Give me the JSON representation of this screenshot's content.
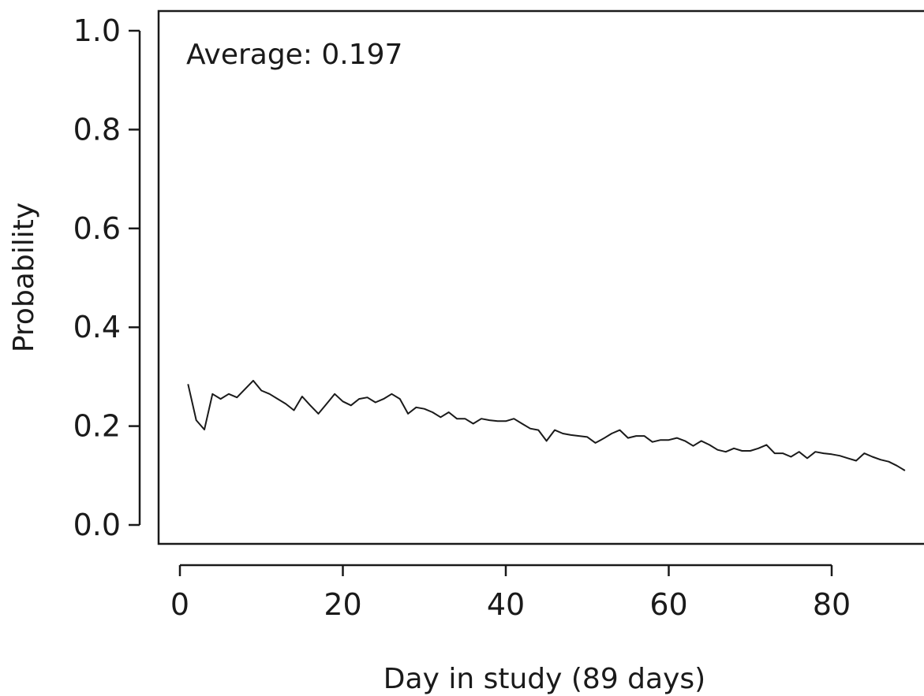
{
  "chart_data": {
    "type": "line",
    "annotation": "Average: 0.197",
    "xlabel": "Day in study (89 days)",
    "ylabel": "Probability",
    "xlim": [
      1,
      89
    ],
    "ylim": [
      0,
      1
    ],
    "x_ticks": [
      0,
      20,
      40,
      60,
      80
    ],
    "x_tick_labels": [
      "0",
      "20",
      "40",
      "60",
      "80"
    ],
    "y_ticks": [
      0,
      0.2,
      0.4,
      0.6,
      0.8,
      1.0
    ],
    "y_tick_labels": [
      "0.0",
      "0.2",
      "0.4",
      "0.6",
      "0.8",
      "1.0"
    ],
    "grid": false,
    "series": [
      {
        "x": [
          1,
          2,
          3,
          4,
          5,
          6,
          7,
          8,
          9,
          10,
          11,
          12,
          13,
          14,
          15,
          16,
          17,
          18,
          19,
          20,
          21,
          22,
          23,
          24,
          25,
          26,
          27,
          28,
          29,
          30,
          31,
          32,
          33,
          34,
          35,
          36,
          37,
          38,
          39,
          40,
          41,
          42,
          43,
          44,
          45,
          46,
          47,
          48,
          49,
          50,
          51,
          52,
          53,
          54,
          55,
          56,
          57,
          58,
          59,
          60,
          61,
          62,
          63,
          64,
          65,
          66,
          67,
          68,
          69,
          70,
          71,
          72,
          73,
          74,
          75,
          76,
          77,
          78,
          79,
          80,
          81,
          82,
          83,
          84,
          85,
          86,
          87,
          88,
          89
        ],
        "y": [
          0.285,
          0.212,
          0.193,
          0.265,
          0.255,
          0.265,
          0.258,
          0.275,
          0.292,
          0.272,
          0.265,
          0.255,
          0.245,
          0.232,
          0.26,
          0.242,
          0.225,
          0.245,
          0.265,
          0.25,
          0.242,
          0.255,
          0.258,
          0.248,
          0.255,
          0.265,
          0.255,
          0.225,
          0.238,
          0.235,
          0.228,
          0.218,
          0.228,
          0.215,
          0.215,
          0.205,
          0.215,
          0.212,
          0.21,
          0.21,
          0.215,
          0.205,
          0.195,
          0.192,
          0.17,
          0.192,
          0.185,
          0.182,
          0.18,
          0.178,
          0.166,
          0.175,
          0.185,
          0.192,
          0.176,
          0.18,
          0.18,
          0.168,
          0.172,
          0.172,
          0.176,
          0.17,
          0.16,
          0.17,
          0.162,
          0.152,
          0.148,
          0.155,
          0.15,
          0.15,
          0.155,
          0.162,
          0.145,
          0.145,
          0.138,
          0.148,
          0.135,
          0.148,
          0.145,
          0.143,
          0.14,
          0.135,
          0.13,
          0.145,
          0.138,
          0.132,
          0.128,
          0.12,
          0.11
        ]
      }
    ]
  }
}
